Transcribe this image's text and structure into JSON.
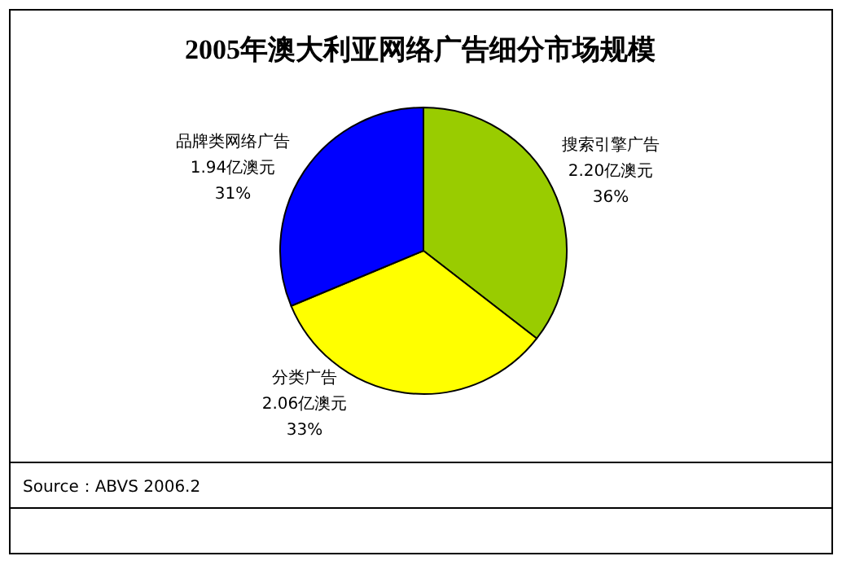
{
  "chart_data": {
    "type": "pie",
    "title": "2005年澳大利亚网络广告细分市场规模",
    "categories": [
      "搜索引擎广告",
      "分类广告",
      "品牌类网络广告"
    ],
    "values": [
      2.2,
      2.06,
      1.94
    ],
    "value_labels": [
      "2.20亿澳元\n36%",
      "2.06亿澳元\n33%",
      "1.94亿澳元\n31%"
    ],
    "colors": [
      "#99cc00",
      "#ffff00",
      "#0000ff"
    ],
    "annotations": [
      "Source：ABVS 2006.2"
    ]
  }
}
